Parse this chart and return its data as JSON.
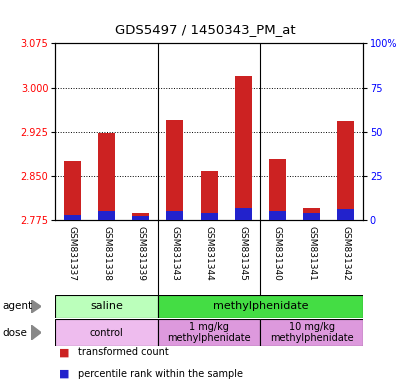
{
  "title": "GDS5497 / 1450343_PM_at",
  "samples": [
    "GSM831337",
    "GSM831338",
    "GSM831339",
    "GSM831343",
    "GSM831344",
    "GSM831345",
    "GSM831340",
    "GSM831341",
    "GSM831342"
  ],
  "transformed_count": [
    2.876,
    2.922,
    2.787,
    2.945,
    2.858,
    3.02,
    2.878,
    2.795,
    2.943
  ],
  "percentile_rank": [
    3.0,
    5.0,
    2.0,
    5.0,
    4.0,
    7.0,
    5.0,
    4.0,
    6.0
  ],
  "ylim_left": [
    2.775,
    3.075
  ],
  "ylim_right": [
    0,
    100
  ],
  "yticks_left": [
    2.775,
    2.85,
    2.925,
    3.0,
    3.075
  ],
  "yticks_right": [
    0,
    25,
    50,
    75,
    100
  ],
  "ytick_right_labels": [
    "0",
    "25",
    "50",
    "75",
    "100%"
  ],
  "bar_color_red": "#cc2222",
  "bar_color_blue": "#2222cc",
  "agent_groups": [
    {
      "label": "saline",
      "start": 0,
      "end": 3,
      "color": "#bbffbb"
    },
    {
      "label": "methylphenidate",
      "start": 3,
      "end": 9,
      "color": "#44dd44"
    }
  ],
  "dose_groups": [
    {
      "label": "control",
      "start": 0,
      "end": 3,
      "color": "#eebcee"
    },
    {
      "label": "1 mg/kg\nmethylphenidate",
      "start": 3,
      "end": 6,
      "color": "#dd99dd"
    },
    {
      "label": "10 mg/kg\nmethylphenidate",
      "start": 6,
      "end": 9,
      "color": "#dd99dd"
    }
  ],
  "bar_width": 0.5,
  "background_color": "#ffffff",
  "plot_bg_color": "#ffffff",
  "grid_color": "#000000",
  "separator_color": "#000000"
}
